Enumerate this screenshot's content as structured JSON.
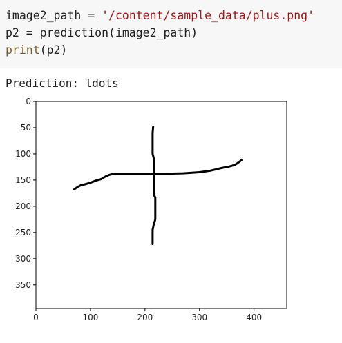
{
  "code_cell": {
    "line1_var": "image2_path = ",
    "line1_str": "'/content/sample_data/plus.png'",
    "line2": "p2 = prediction(image2_path)",
    "line3_fn": "print",
    "line3_rest": "(p2)"
  },
  "output": {
    "text": "Prediction: ldots"
  },
  "chart_data": {
    "type": "image",
    "xlabel": "",
    "ylabel": "",
    "xlim": [
      0,
      460
    ],
    "ylim": [
      395,
      0
    ],
    "x_ticks": [
      0,
      100,
      200,
      300,
      400
    ],
    "y_ticks": [
      0,
      50,
      100,
      150,
      200,
      250,
      300,
      350
    ],
    "strokes": [
      {
        "name": "horizontal-stroke",
        "points": [
          [
            70,
            168
          ],
          [
            75,
            164
          ],
          [
            82,
            160
          ],
          [
            90,
            158
          ],
          [
            100,
            155
          ],
          [
            110,
            151
          ],
          [
            120,
            148
          ],
          [
            128,
            143
          ],
          [
            135,
            140
          ],
          [
            142,
            138
          ],
          [
            160,
            138
          ],
          [
            200,
            138
          ],
          [
            240,
            138
          ],
          [
            270,
            137
          ],
          [
            300,
            135
          ],
          [
            320,
            132
          ],
          [
            340,
            127
          ],
          [
            355,
            124
          ],
          [
            365,
            121
          ],
          [
            372,
            116
          ],
          [
            377,
            112
          ]
        ]
      },
      {
        "name": "vertical-stroke",
        "points": [
          [
            215,
            48
          ],
          [
            214,
            60
          ],
          [
            214,
            80
          ],
          [
            214,
            100
          ],
          [
            216,
            108
          ],
          [
            216,
            120
          ],
          [
            216,
            140
          ],
          [
            216,
            160
          ],
          [
            216,
            178
          ],
          [
            219,
            183
          ],
          [
            219,
            200
          ],
          [
            219,
            225
          ],
          [
            216,
            235
          ],
          [
            214,
            245
          ],
          [
            214,
            260
          ],
          [
            214,
            272
          ]
        ]
      }
    ],
    "colors": {
      "stroke": "#000000",
      "frame": "#000000",
      "background": "#ffffff"
    }
  }
}
